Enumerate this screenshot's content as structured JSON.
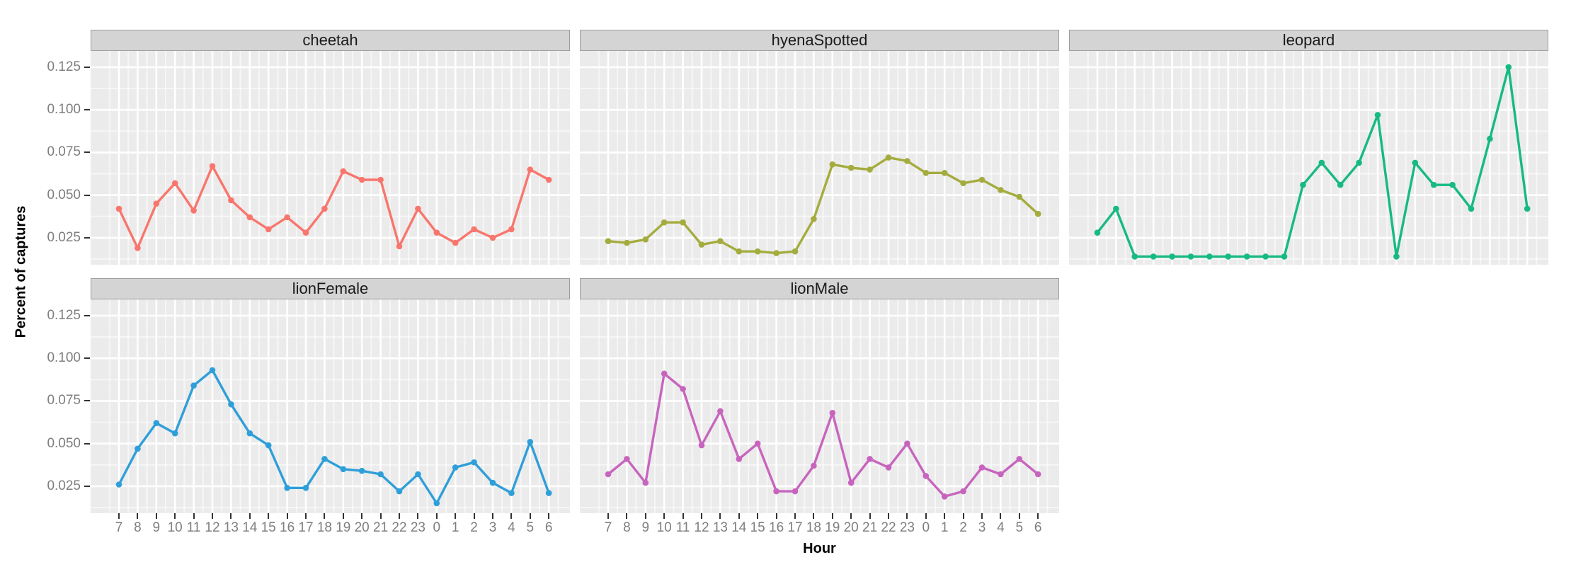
{
  "figure": {
    "y_axis_title": "Percent of captures",
    "x_axis_title": "Hour",
    "y_tick_labels": [
      "0.125",
      "0.100",
      "0.075",
      "0.050",
      "0.025"
    ],
    "x_tick_labels": [
      "7",
      "8",
      "9",
      "10",
      "11",
      "12",
      "13",
      "14",
      "15",
      "16",
      "17",
      "18",
      "19",
      "20",
      "21",
      "22",
      "23",
      "0",
      "1",
      "2",
      "3",
      "4",
      "5",
      "6"
    ]
  },
  "style": {
    "panel_bg": "#EBEBEB",
    "strip_bg": "#D4D4D4",
    "major_grid": "#FFFFFF",
    "minor_grid": "rgba(255,255,255,0.55)",
    "tick_label_color": "#7E7E7E",
    "tick_mark_color": "#333333"
  },
  "chart_data": {
    "type": "line",
    "title": "",
    "xlabel": "Hour",
    "ylabel": "Percent of captures",
    "categories": [
      "7",
      "8",
      "9",
      "10",
      "11",
      "12",
      "13",
      "14",
      "15",
      "16",
      "17",
      "18",
      "19",
      "20",
      "21",
      "22",
      "23",
      "0",
      "1",
      "2",
      "3",
      "4",
      "5",
      "6"
    ],
    "y_major_ticks": [
      0.125,
      0.1,
      0.075,
      0.05,
      0.025
    ],
    "y_minor_ticks": [
      0.1125,
      0.0875,
      0.0625,
      0.0375,
      0.0125
    ],
    "ylim": [
      0.0092,
      0.1345
    ],
    "grid": true,
    "legend_position": "none",
    "facet_layout": {
      "rows": 2,
      "cols": 3,
      "panels": 5
    },
    "facets": [
      {
        "name": "cheetah",
        "color": "#F8766D",
        "values": [
          0.042,
          0.019,
          0.045,
          0.057,
          0.041,
          0.067,
          0.047,
          0.037,
          0.03,
          0.037,
          0.028,
          0.042,
          0.064,
          0.059,
          0.059,
          0.02,
          0.042,
          0.028,
          0.022,
          0.03,
          0.025,
          0.03,
          0.065,
          0.059
        ]
      },
      {
        "name": "hyenaSpotted",
        "color": "#A4AC3E",
        "values": [
          0.023,
          0.022,
          0.024,
          0.034,
          0.034,
          0.021,
          0.023,
          0.017,
          0.017,
          0.016,
          0.017,
          0.036,
          0.068,
          0.066,
          0.065,
          0.072,
          0.07,
          0.063,
          0.063,
          0.057,
          0.059,
          0.053,
          0.049,
          0.039
        ]
      },
      {
        "name": "leopard",
        "color": "#17BA81",
        "values": [
          0.028,
          0.042,
          0.014,
          0.014,
          0.014,
          0.014,
          0.014,
          0.014,
          0.014,
          0.014,
          0.014,
          0.056,
          0.069,
          0.056,
          0.069,
          0.097,
          0.014,
          0.069,
          0.056,
          0.056,
          0.042,
          0.083,
          0.125,
          0.042
        ]
      },
      {
        "name": "lionFemale",
        "color": "#2F9FD9",
        "values": [
          0.026,
          0.047,
          0.062,
          0.056,
          0.084,
          0.093,
          0.073,
          0.056,
          0.049,
          0.024,
          0.024,
          0.041,
          0.035,
          0.034,
          0.032,
          0.022,
          0.032,
          0.015,
          0.036,
          0.039,
          0.027,
          0.021,
          0.051,
          0.021
        ]
      },
      {
        "name": "lionMale",
        "color": "#C765BE",
        "values": [
          0.032,
          0.041,
          0.027,
          0.091,
          0.082,
          0.049,
          0.069,
          0.041,
          0.05,
          0.022,
          0.022,
          0.037,
          0.068,
          0.027,
          0.041,
          0.036,
          0.05,
          0.031,
          0.019,
          0.022,
          0.036,
          0.032,
          0.041,
          0.032
        ]
      }
    ]
  }
}
